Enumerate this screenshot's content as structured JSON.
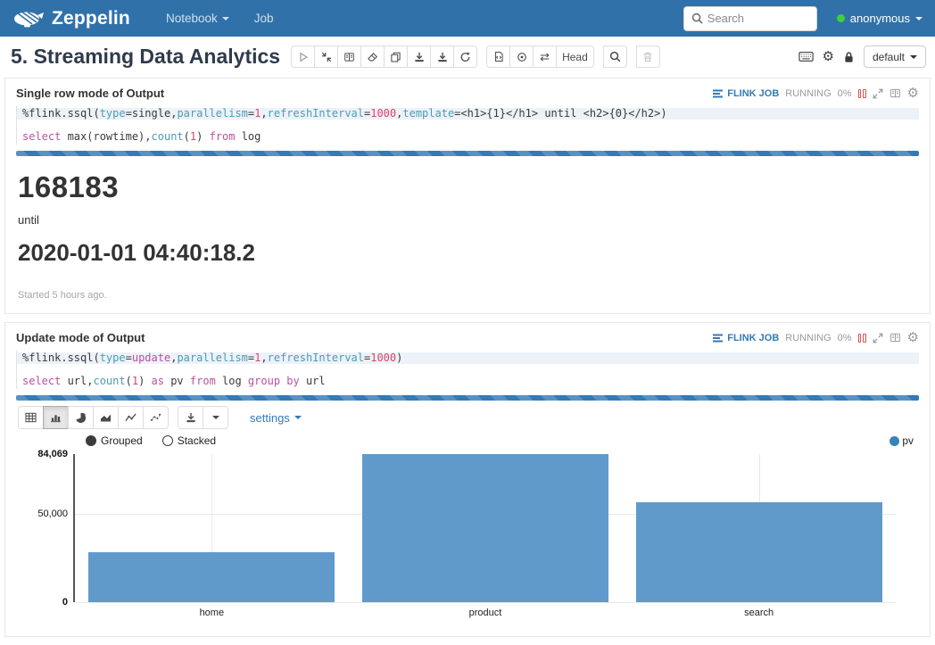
{
  "navbar": {
    "brand": "Zeppelin",
    "menu": [
      {
        "label": "Notebook"
      },
      {
        "label": "Job"
      }
    ],
    "search_placeholder": "Search",
    "user": {
      "name": "anonymous",
      "status_color": "#3dd13d"
    }
  },
  "note": {
    "title": "5. Streaming Data Analytics",
    "head_button": "Head",
    "display_mode": "default"
  },
  "paragraphs": [
    {
      "title": "Single row mode of Output",
      "status": {
        "job_link": "FLINK JOB",
        "state": "RUNNING",
        "progress": "0%"
      },
      "code_lines": [
        [
          [
            "%flink.ssql(",
            "plain"
          ],
          [
            "type",
            "ident"
          ],
          [
            "=",
            "plain"
          ],
          [
            "single",
            "plain"
          ],
          [
            ",",
            "plain"
          ],
          [
            "parallelism",
            "ident"
          ],
          [
            "=",
            "plain"
          ],
          [
            "1",
            "number"
          ],
          [
            ",",
            "plain"
          ],
          [
            "refreshInterval",
            "ident"
          ],
          [
            "=",
            "plain"
          ],
          [
            "1000",
            "number"
          ],
          [
            ",",
            "plain"
          ],
          [
            "template",
            "ident"
          ],
          [
            "=<h1>{1}</h1> until <h2>{0}</h2>)",
            "plain"
          ]
        ],
        [],
        [
          [
            "select",
            "kw"
          ],
          [
            " max(rowtime),",
            "plain"
          ],
          [
            "count",
            "ident"
          ],
          [
            "(",
            "plain"
          ],
          [
            "1",
            "number"
          ],
          [
            ") ",
            "plain"
          ],
          [
            "from",
            "kw"
          ],
          [
            " log",
            "plain"
          ]
        ]
      ],
      "output": {
        "primary_value": "168183",
        "separator": "until",
        "secondary_value": "2020-01-01 04:40:18.2",
        "started_note": "Started 5 hours ago."
      }
    },
    {
      "title": "Update mode of Output",
      "status": {
        "job_link": "FLINK JOB",
        "state": "RUNNING",
        "progress": "0%"
      },
      "code_lines": [
        [
          [
            "%flink.ssql(",
            "plain"
          ],
          [
            "type",
            "ident"
          ],
          [
            "=",
            "plain"
          ],
          [
            "update",
            "kw"
          ],
          [
            ",",
            "plain"
          ],
          [
            "parallelism",
            "ident"
          ],
          [
            "=",
            "plain"
          ],
          [
            "1",
            "number"
          ],
          [
            ",",
            "plain"
          ],
          [
            "refreshInterval",
            "ident"
          ],
          [
            "=",
            "plain"
          ],
          [
            "1000",
            "number"
          ],
          [
            ")",
            "plain"
          ]
        ],
        [],
        [
          [
            "select",
            "kw"
          ],
          [
            " url,",
            "plain"
          ],
          [
            "count",
            "ident"
          ],
          [
            "(",
            "plain"
          ],
          [
            "1",
            "number"
          ],
          [
            ") ",
            "plain"
          ],
          [
            "as",
            "kw"
          ],
          [
            " pv ",
            "plain"
          ],
          [
            "from",
            "kw"
          ],
          [
            " log ",
            "plain"
          ],
          [
            "group",
            "kw"
          ],
          [
            " ",
            "plain"
          ],
          [
            "by",
            "kw"
          ],
          [
            " url",
            "plain"
          ]
        ]
      ],
      "viz": {
        "settings_label": "settings",
        "modes": {
          "grouped": "Grouped",
          "stacked": "Stacked",
          "selected": "Grouped"
        }
      }
    }
  ],
  "chart_data": {
    "type": "bar",
    "categories": [
      "home",
      "product",
      "search"
    ],
    "series": [
      {
        "name": "pv",
        "values": [
          28500,
          84069,
          56500
        ]
      }
    ],
    "title": "",
    "xlabel": "",
    "ylabel": "",
    "ylim": [
      0,
      84069
    ],
    "yticks": [
      {
        "value": 84069,
        "label": "84,069",
        "bold": true,
        "grid": false
      },
      {
        "value": 50000,
        "label": "50,000",
        "bold": false,
        "grid": true
      },
      {
        "value": 0,
        "label": "0",
        "bold": true,
        "grid": true
      }
    ],
    "legend": [
      {
        "label": "pv",
        "color": "#3782bb"
      }
    ],
    "legend_position": "top-right",
    "grid": true,
    "bar_color": "#609acb",
    "mode": "Grouped"
  },
  "icons": {
    "gear_glyph": "⚙",
    "compare_glyph": "⇄"
  }
}
